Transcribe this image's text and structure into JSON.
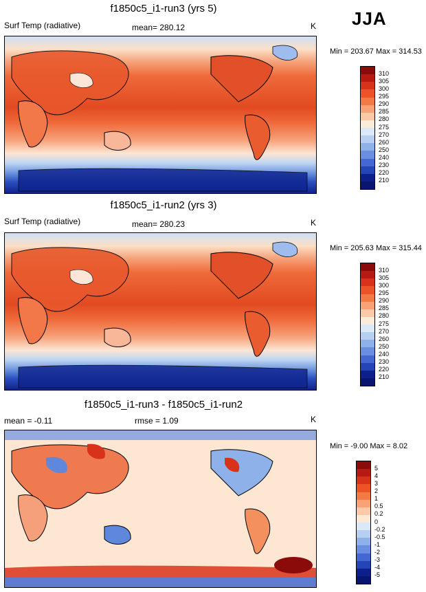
{
  "season": "JJA",
  "panels": [
    {
      "title": "f1850c5_i1-run3 (yrs 5)",
      "left_label": "Surf Temp (radiative)",
      "center_label": "mean= 280.12",
      "units": "K",
      "minmax": "Min = 203.67 Max = 314.53"
    },
    {
      "title": "f1850c5_i1-run2 (yrs 3)",
      "left_label": "Surf Temp (radiative)",
      "center_label": "mean= 280.23",
      "units": "K",
      "minmax": "Min = 205.63 Max = 315.44"
    },
    {
      "title": "f1850c5_i1-run3 - f1850c5_i1-run2",
      "left_label": "mean =  -0.11",
      "center_label": "rmse =   1.09",
      "units": "K",
      "minmax": "Min =  -9.00 Max =   8.02"
    }
  ],
  "chart_data": [
    {
      "type": "heatmap",
      "title": "f1850c5_i1-run3 (yrs 5)",
      "variable": "Surf Temp (radiative)",
      "mean": 280.12,
      "units": "K",
      "min": 203.67,
      "max": 314.53,
      "contour_levels": [
        "310",
        "305",
        "300",
        "295",
        "290",
        "285",
        "280",
        "275",
        "270",
        "260",
        "250",
        "240",
        "230",
        "220",
        "210"
      ],
      "colors": [
        "#8b0a0a",
        "#b71a12",
        "#d9321b",
        "#ec5428",
        "#f47a45",
        "#f8a276",
        "#fbc8a8",
        "#fdebd9",
        "#dbe8f8",
        "#b6cff2",
        "#8fb1ea",
        "#6a8fe0",
        "#4468d2",
        "#2445b6",
        "#0d1f8a",
        "#0a1570"
      ]
    },
    {
      "type": "heatmap",
      "title": "f1850c5_i1-run2 (yrs 3)",
      "variable": "Surf Temp (radiative)",
      "mean": 280.23,
      "units": "K",
      "min": 205.63,
      "max": 315.44,
      "contour_levels": [
        "310",
        "305",
        "300",
        "295",
        "290",
        "285",
        "280",
        "275",
        "270",
        "260",
        "250",
        "240",
        "230",
        "220",
        "210"
      ],
      "colors": [
        "#8b0a0a",
        "#b71a12",
        "#d9321b",
        "#ec5428",
        "#f47a45",
        "#f8a276",
        "#fbc8a8",
        "#fdebd9",
        "#dbe8f8",
        "#b6cff2",
        "#8fb1ea",
        "#6a8fe0",
        "#4468d2",
        "#2445b6",
        "#0d1f8a",
        "#0a1570"
      ]
    },
    {
      "type": "heatmap",
      "title": "f1850c5_i1-run3 - f1850c5_i1-run2",
      "mean": -0.11,
      "rmse": 1.09,
      "units": "K",
      "min": -9.0,
      "max": 8.02,
      "contour_levels": [
        "5",
        "4",
        "3",
        "2",
        "1",
        "0.5",
        "0.2",
        "0",
        "-0.2",
        "-0.5",
        "-1",
        "-2",
        "-3",
        "-4",
        "-5"
      ],
      "colors": [
        "#8b0a0a",
        "#b71a12",
        "#d9321b",
        "#ec5428",
        "#f47a45",
        "#f8a276",
        "#fbc8a8",
        "#fde8d4",
        "#dbe8f8",
        "#b6cff2",
        "#8fb1ea",
        "#6a8fe0",
        "#4468d2",
        "#2445b6",
        "#0d1f8a",
        "#0a1570"
      ]
    }
  ]
}
